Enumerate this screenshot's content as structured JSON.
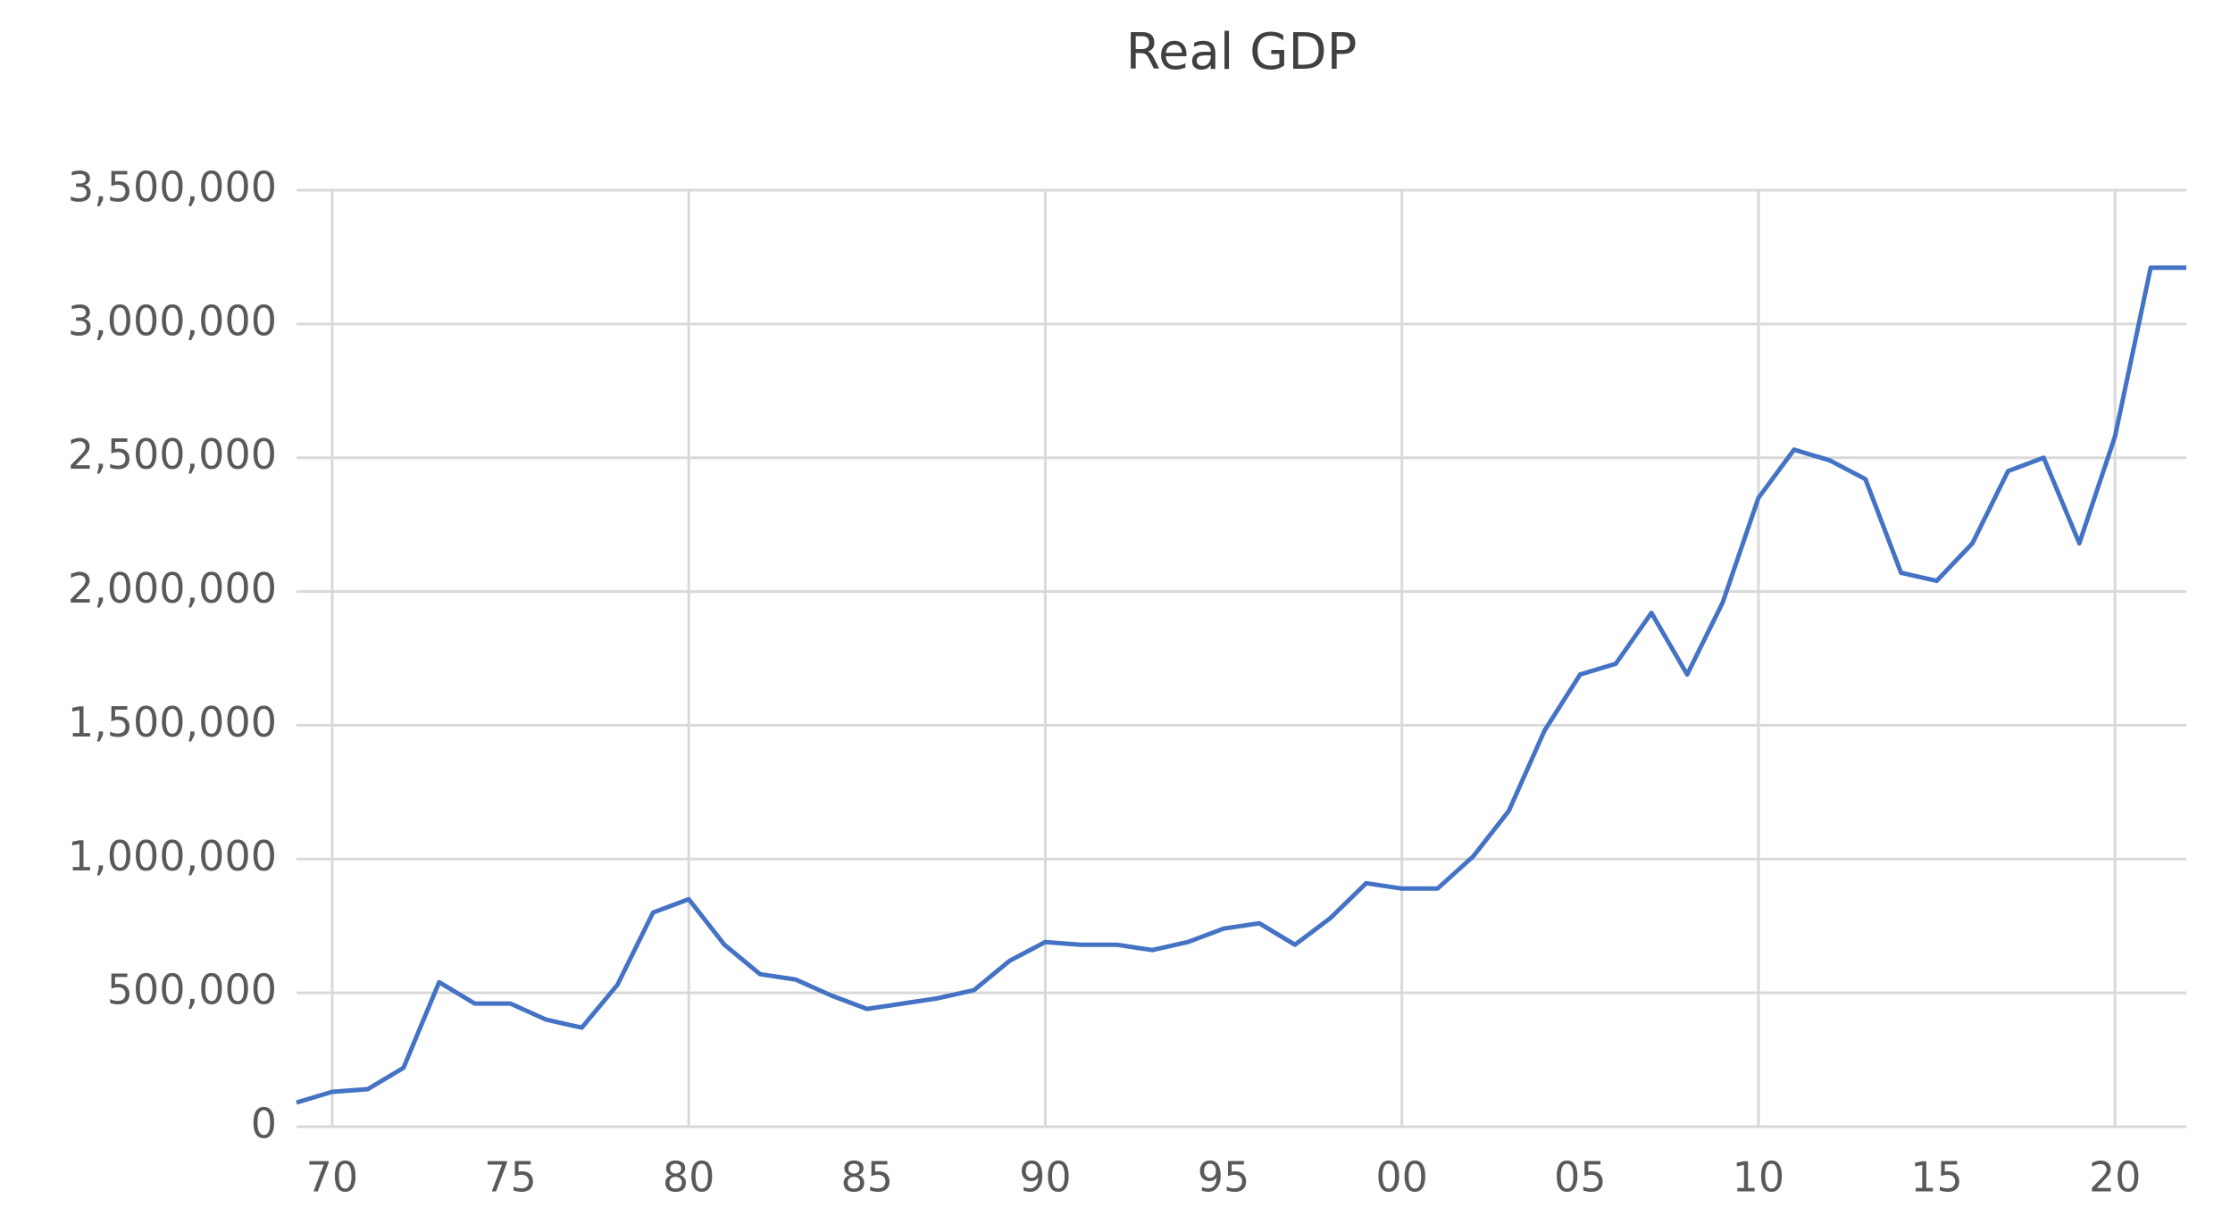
{
  "chart_data": {
    "type": "line",
    "title": "Real GDP",
    "x": [
      1969,
      1970,
      1971,
      1972,
      1973,
      1974,
      1975,
      1976,
      1977,
      1978,
      1979,
      1980,
      1981,
      1982,
      1983,
      1984,
      1985,
      1986,
      1987,
      1988,
      1989,
      1990,
      1991,
      1992,
      1993,
      1994,
      1995,
      1996,
      1997,
      1998,
      1999,
      2000,
      2001,
      2002,
      2003,
      2004,
      2005,
      2006,
      2007,
      2008,
      2009,
      2010,
      2011,
      2012,
      2013,
      2014,
      2015,
      2016,
      2017,
      2018,
      2019,
      2020,
      2021,
      2022
    ],
    "series": [
      {
        "color": "#4472c4",
        "values": [
          90000,
          130000,
          140000,
          220000,
          540000,
          460000,
          460000,
          400000,
          370000,
          530000,
          800000,
          850000,
          680000,
          570000,
          550000,
          490000,
          440000,
          460000,
          480000,
          510000,
          620000,
          690000,
          680000,
          680000,
          660000,
          690000,
          740000,
          760000,
          680000,
          780000,
          910000,
          890000,
          890000,
          1010000,
          1180000,
          1480000,
          1690000,
          1730000,
          1920000,
          1690000,
          1960000,
          2350000,
          2530000,
          2490000,
          2420000,
          2070000,
          2040000,
          2180000,
          2450000,
          2500000,
          2180000,
          2580000,
          3210000,
          3210000
        ]
      }
    ],
    "xlim": [
      1969,
      2022
    ],
    "xticks": [
      {
        "value": 1970,
        "label": "70"
      },
      {
        "value": 1975,
        "label": "75"
      },
      {
        "value": 1980,
        "label": "80"
      },
      {
        "value": 1985,
        "label": "85"
      },
      {
        "value": 1990,
        "label": "90"
      },
      {
        "value": 1995,
        "label": "95"
      },
      {
        "value": 2000,
        "label": "00"
      },
      {
        "value": 2005,
        "label": "05"
      },
      {
        "value": 2010,
        "label": "10"
      },
      {
        "value": 2015,
        "label": "15"
      },
      {
        "value": 2020,
        "label": "20"
      }
    ],
    "ylim": [
      0,
      3500000
    ],
    "yticks": [
      0,
      {
        "value": 500000,
        "label": "500,000"
      },
      {
        "value": 1000000,
        "label": "1,000,000"
      },
      {
        "value": 1500000,
        "label": "1,500,000"
      },
      {
        "value": 2000000,
        "label": "2,000,000"
      },
      {
        "value": 2500000,
        "label": "2,500,000"
      },
      {
        "value": 3000000,
        "label": "3,000,000"
      },
      {
        "value": 3500000,
        "label": "3,500,000"
      }
    ],
    "grid": true
  }
}
